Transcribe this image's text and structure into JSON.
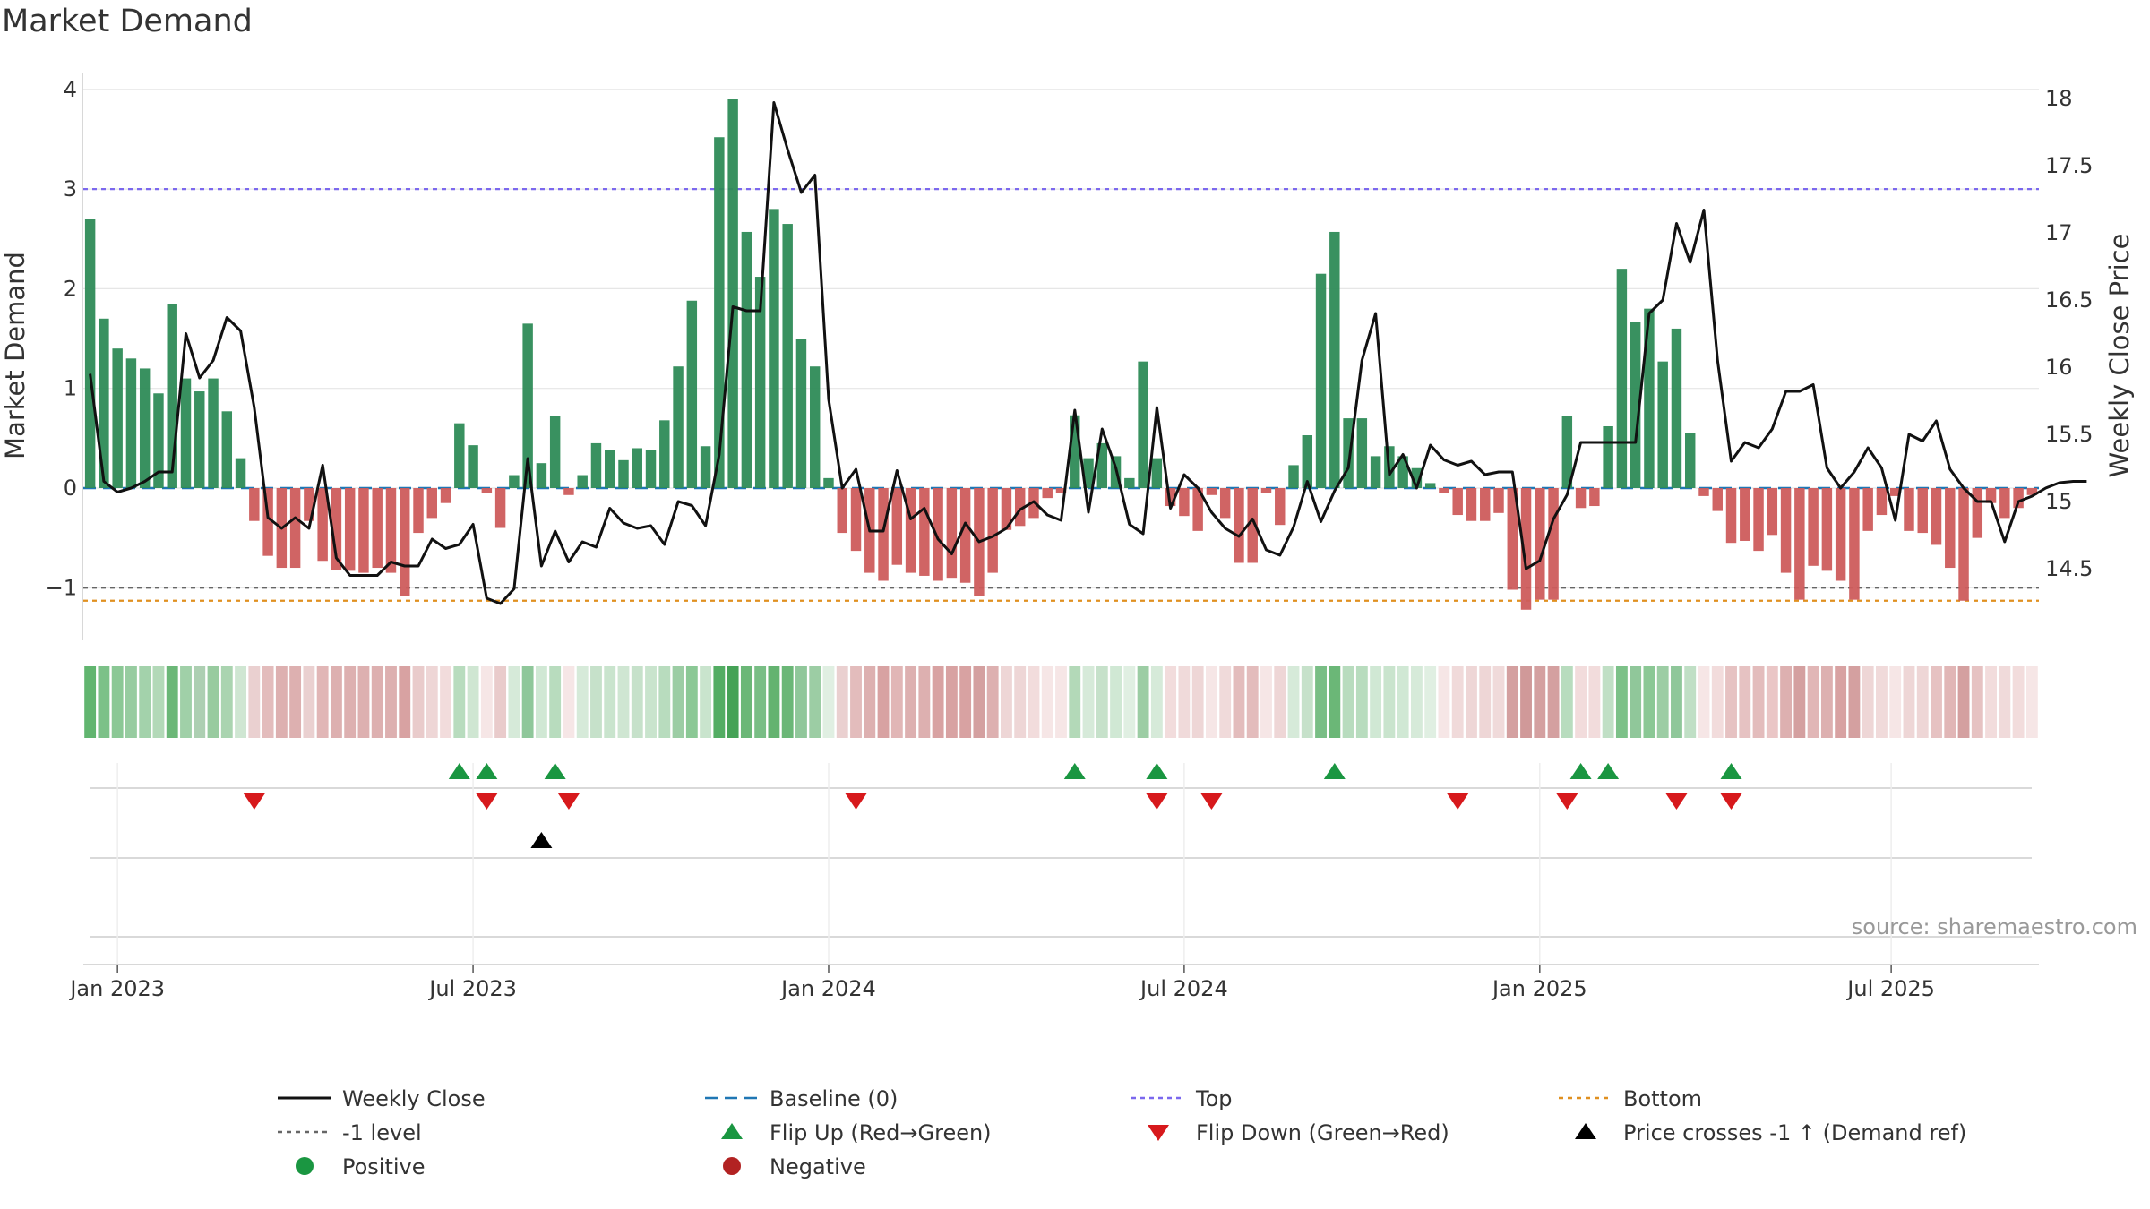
{
  "title": "Market Demand",
  "source": "source: sharemaestro.com",
  "chart_data": {
    "type": "bar",
    "title": "Market Demand",
    "ylabel_left": "Market Demand",
    "ylabel_right": "Weekly Close Price",
    "ylim_left": [
      -1.5,
      4.15
    ],
    "ylim_right": [
      14.0,
      18.1
    ],
    "left_ticks": [
      4,
      3,
      2,
      1,
      0,
      -1
    ],
    "left_tick_labels": [
      "4",
      "3",
      "2",
      "1",
      "0",
      "−1"
    ],
    "right_ticks": [
      18,
      17.5,
      17,
      16.5,
      16,
      15.5,
      15,
      14.5
    ],
    "right_tick_labels": [
      "18",
      "17.5",
      "17",
      "16.5",
      "16",
      "15.5",
      "15",
      "14.5"
    ],
    "x_start": "2022-12-19",
    "x_end": "2025-09-22",
    "x_tick_labels": [
      "Jan 2023",
      "Jul 2023",
      "Jan 2024",
      "Jul 2024",
      "Jan 2025",
      "Jul 2025"
    ],
    "x_tick_positions_weeks": [
      2,
      28,
      54,
      80,
      106,
      131.7
    ],
    "reference_lines": {
      "top": 3.0,
      "minus_one": -1.0,
      "bottom": -1.13,
      "baseline": 0
    },
    "demand": [
      2.7,
      1.7,
      1.4,
      1.3,
      1.2,
      0.95,
      1.85,
      1.1,
      0.97,
      1.1,
      0.77,
      0.3,
      -0.33,
      -0.68,
      -0.8,
      -0.8,
      -0.33,
      -0.73,
      -0.82,
      -0.83,
      -0.85,
      -0.8,
      -0.85,
      -1.08,
      -0.45,
      -0.3,
      -0.15,
      0.65,
      0.43,
      -0.05,
      -0.4,
      0.13,
      1.65,
      0.25,
      0.72,
      -0.07,
      0.13,
      0.45,
      0.38,
      0.28,
      0.4,
      0.38,
      0.68,
      1.22,
      1.88,
      0.42,
      3.52,
      3.9,
      2.57,
      2.12,
      2.8,
      2.65,
      1.5,
      1.22,
      0.1,
      -0.45,
      -0.63,
      -0.85,
      -0.93,
      -0.77,
      -0.85,
      -0.88,
      -0.93,
      -0.9,
      -0.95,
      -1.08,
      -0.85,
      -0.42,
      -0.38,
      -0.3,
      -0.1,
      -0.05,
      0.73,
      0.3,
      0.45,
      0.32,
      0.1,
      1.27,
      0.3,
      -0.18,
      -0.28,
      -0.43,
      -0.07,
      -0.3,
      -0.75,
      -0.75,
      -0.05,
      -0.37,
      0.23,
      0.53,
      2.15,
      2.57,
      0.7,
      0.7,
      0.32,
      0.42,
      0.32,
      0.2,
      0.05,
      -0.05,
      -0.27,
      -0.33,
      -0.33,
      -0.25,
      -1.02,
      -1.22,
      -1.12,
      -1.12,
      0.72,
      -0.2,
      -0.18,
      0.62,
      2.2,
      1.67,
      1.8,
      1.27,
      1.6,
      0.55,
      -0.08,
      -0.23,
      -0.55,
      -0.53,
      -0.63,
      -0.47,
      -0.85,
      -1.12,
      -0.78,
      -0.83,
      -0.93,
      -1.12,
      -0.43,
      -0.27,
      -0.08,
      -0.43,
      -0.45,
      -0.57,
      -0.8,
      -1.13,
      -0.5,
      -0.15,
      -0.3,
      -0.2,
      -0.07
    ],
    "series": [
      {
        "name": "Market Demand",
        "values_ref": "demand"
      },
      {
        "name": "Weekly Close",
        "values": [
          15.95,
          15.15,
          15.07,
          15.1,
          15.15,
          15.22,
          15.22,
          16.25,
          15.92,
          16.05,
          16.37,
          16.27,
          15.7,
          14.88,
          14.8,
          14.88,
          14.8,
          15.27,
          14.58,
          14.45,
          14.45,
          14.45,
          14.55,
          14.52,
          14.52,
          14.72,
          14.65,
          14.68,
          14.83,
          14.28,
          14.24,
          14.35,
          15.32,
          14.52,
          14.78,
          14.55,
          14.7,
          14.66,
          14.95,
          14.84,
          14.8,
          14.82,
          14.68,
          15.0,
          14.97,
          14.82,
          15.35,
          16.45,
          16.42,
          16.42,
          17.97,
          17.62,
          17.3,
          17.43,
          15.76,
          15.1,
          15.24,
          14.78,
          14.78,
          15.23,
          14.87,
          14.95,
          14.72,
          14.61,
          14.84,
          14.7,
          14.74,
          14.8,
          14.94,
          15.0,
          14.9,
          14.86,
          15.68,
          14.92,
          15.54,
          15.25,
          14.83,
          14.76,
          15.7,
          14.95,
          15.2,
          15.1,
          14.92,
          14.8,
          14.74,
          14.87,
          14.64,
          14.6,
          14.81,
          15.15,
          14.85,
          15.08,
          15.25,
          16.05,
          16.4,
          15.2,
          15.35,
          15.1,
          15.42,
          15.31,
          15.27,
          15.3,
          15.2,
          15.22,
          15.22,
          14.5,
          14.56,
          14.87,
          15.05,
          15.44,
          15.44,
          15.44,
          15.44,
          15.44,
          16.4,
          16.5,
          17.07,
          16.78,
          17.17,
          16.05,
          15.3,
          15.44,
          15.4,
          15.54,
          15.82,
          15.82,
          15.87,
          15.25,
          15.1,
          15.22,
          15.4,
          15.25,
          14.86,
          15.5,
          15.45,
          15.6,
          15.24,
          15.1,
          15.0,
          15.0,
          14.7,
          15.0,
          15.04,
          15.1,
          15.14,
          15.15,
          15.15
        ]
      }
    ],
    "flip_up_weeks": [
      27,
      29,
      34,
      72,
      78,
      91,
      109,
      111,
      120
    ],
    "flip_down_weeks": [
      12,
      29,
      35,
      56,
      78,
      82,
      100,
      108,
      116,
      120
    ],
    "price_cross_weeks": [
      33
    ],
    "strip_shades": [
      "#61b56f",
      "#7cc188",
      "#8bc895",
      "#97cca0",
      "#a3d2ab",
      "#b3d9b8",
      "#6bb777",
      "#a0d0a8",
      "#adcfb2",
      "#98cb9f",
      "#aad4b0",
      "#cfe6d2",
      "#ead0d0",
      "#e3bcbc",
      "#ddb0b0",
      "#ddb0b0",
      "#ead0d0",
      "#e1b6b6",
      "#ddb0b0",
      "#ddb0b0",
      "#ddb0b0",
      "#ddb0b0",
      "#ddb0b0",
      "#d8a2a2",
      "#e9cbcb",
      "#eed6d6",
      "#f2dcdc",
      "#b8dcbe",
      "#cfe6d2",
      "#f6e6e6",
      "#e9cbcb",
      "#d6ead9",
      "#8fc79a",
      "#d0e8d4",
      "#b8dcbe",
      "#f6e6e6",
      "#d6ead9",
      "#c6e1ca",
      "#c9e4cd",
      "#cfe6d2",
      "#c6e1ca",
      "#c9e4cd",
      "#b8dcbe",
      "#9ccda4",
      "#8bc895",
      "#c9e4cd",
      "#53ad63",
      "#45a256",
      "#6bb777",
      "#79be85",
      "#64b370",
      "#6bb777",
      "#90c79a",
      "#9ccda4",
      "#e0efe2",
      "#ead0d0",
      "#e3bcbc",
      "#ddb0b0",
      "#d8a2a2",
      "#e1b6b6",
      "#ddb0b0",
      "#ddb0b0",
      "#d8a2a2",
      "#d8a2a2",
      "#d8a2a2",
      "#d4a0a0",
      "#ddb0b0",
      "#eed6d6",
      "#eed6d6",
      "#f2dcdc",
      "#f6e6e6",
      "#f6e6e6",
      "#b3d9b8",
      "#d6ead9",
      "#c6e1ca",
      "#d0e8d4",
      "#e0efe2",
      "#9ccda4",
      "#d6ead9",
      "#f2dcdc",
      "#f0dada",
      "#eed6d6",
      "#f6e6e6",
      "#f0dada",
      "#e3bcbc",
      "#e3bcbc",
      "#f6e6e6",
      "#eed6d6",
      "#d6ead9",
      "#c6e1ca",
      "#79be85",
      "#6bb777",
      "#b8dcbe",
      "#b8dcbe",
      "#d0e8d4",
      "#c9e4cd",
      "#d0e8d4",
      "#d6ead9",
      "#e0efe2",
      "#f6e6e6",
      "#f0dada",
      "#eed6d6",
      "#eed6d6",
      "#f0dada",
      "#d4a0a0",
      "#d09999",
      "#d4a0a0",
      "#d4a0a0",
      "#b8dcbe",
      "#f2dcdc",
      "#f2dcdc",
      "#c0dfc5",
      "#7cc188",
      "#90c79a",
      "#8bc895",
      "#9ccda4",
      "#8fc79a",
      "#c0dfc5",
      "#f6e6e6",
      "#f2dcdc",
      "#e6c2c2",
      "#e6c2c2",
      "#e3bcbc",
      "#eac6c6",
      "#ddb0b0",
      "#d4a0a0",
      "#e1b6b6",
      "#ddb0b0",
      "#d8a2a2",
      "#d4a0a0",
      "#eed6d6",
      "#f0dada",
      "#f6e6e6",
      "#eed6d6",
      "#eed6d6",
      "#e6c2c2",
      "#e1b6b6",
      "#d4a0a0",
      "#e6c2c2",
      "#f2dcdc",
      "#f0dada",
      "#f2dcdc",
      "#f6e6e6"
    ],
    "colors": {
      "positive": "#2e8b57",
      "negative": "#cd5c5c",
      "close_line": "#111111",
      "baseline": "#1f77b4",
      "top": "#7b68ee",
      "minus_one": "#666666",
      "bottom": "#e09020",
      "flip_up": "#1a9641",
      "flip_down": "#d7191c",
      "price_cross": "#000000",
      "positive_dot": "#1a9641",
      "negative_dot": "#b22222",
      "grid": "#e6e6e6",
      "lane_line": "#d9d9d9"
    },
    "legend": [
      {
        "key": "weekly_close",
        "label": "Weekly Close",
        "kind": "line-solid",
        "color": "#111111"
      },
      {
        "key": "baseline",
        "label": "Baseline (0)",
        "kind": "line-dash",
        "color": "#1f77b4"
      },
      {
        "key": "top",
        "label": "Top",
        "kind": "line-dot",
        "color": "#7b68ee"
      },
      {
        "key": "bottom",
        "label": "Bottom",
        "kind": "line-dot",
        "color": "#e09020"
      },
      {
        "key": "minus_one",
        "label": "-1 level",
        "kind": "line-dot",
        "color": "#666666"
      },
      {
        "key": "flip_up",
        "label": "Flip Up (Red→Green)",
        "kind": "tri-up",
        "color": "#1a9641"
      },
      {
        "key": "flip_down",
        "label": "Flip Down (Green→Red)",
        "kind": "tri-down",
        "color": "#d7191c"
      },
      {
        "key": "price_cross",
        "label": "Price crosses -1 ↑ (Demand ref)",
        "kind": "tri-up",
        "color": "#000000"
      },
      {
        "key": "positive",
        "label": "Positive",
        "kind": "dot",
        "color": "#1a9641"
      },
      {
        "key": "negative",
        "label": "Negative",
        "kind": "dot",
        "color": "#b22222"
      }
    ]
  }
}
